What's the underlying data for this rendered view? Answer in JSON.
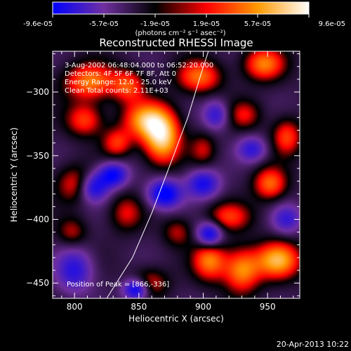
{
  "figure": {
    "footer_date": "20-Apr-2013 10:22"
  },
  "colorbar": {
    "tick_labels": [
      "-9.6e-05",
      "-5.7e-05",
      "-1.9e-05",
      "1.9e-05",
      "5.7e-05",
      "9.6e-05"
    ],
    "unit_label": "(photons cm⁻² s⁻¹ asec⁻²)",
    "range": [
      -9.6e-05,
      9.6e-05
    ],
    "colors": [
      "#0000ff",
      "#7030a0",
      "#000000",
      "#ff0000",
      "#ff9900",
      "#ffffff"
    ]
  },
  "chart_data": {
    "type": "heatmap",
    "title": "Reconstructed RHESSI Image",
    "xlabel": "Heliocentric X (arcsec)",
    "ylabel": "Heliocentric Y (arcsec)",
    "xlim": [
      783,
      975
    ],
    "ylim": [
      -462,
      -268
    ],
    "x_ticks": [
      800,
      850,
      900,
      950
    ],
    "y_ticks": [
      -450,
      -400,
      -350,
      -300
    ],
    "x_tick_labels": [
      "800",
      "850",
      "900",
      "950"
    ],
    "y_tick_labels": [
      "−450",
      "−400",
      "−350",
      "−300"
    ],
    "annotations": [
      "3-Aug-2002 06:48:04.000 to 06:52:20.000",
      "Detectors: 4F 5F 6F 7F 8F, Att 0",
      "Energy Range: 12.0 - 25.0 keV",
      "Clean    Total counts: 2.11E+03"
    ],
    "peak_label": "Position of Peak = [866,-336]",
    "peak": [
      866,
      -336
    ],
    "limb_curve": [
      [
        825,
        -462
      ],
      [
        845,
        -430
      ],
      [
        860,
        -395
      ],
      [
        875,
        -355
      ],
      [
        888,
        -320
      ],
      [
        897,
        -290
      ],
      [
        904,
        -268
      ]
    ],
    "sources": [
      {
        "x": 868,
        "y": -336,
        "sx": 10,
        "sy": 14,
        "a": 1.0
      },
      {
        "x": 855,
        "y": -322,
        "sx": 12,
        "sy": 10,
        "a": 0.75
      },
      {
        "x": 812,
        "y": -292,
        "sx": 14,
        "sy": 10,
        "a": 0.7
      },
      {
        "x": 842,
        "y": -295,
        "sx": 9,
        "sy": 9,
        "a": 0.55
      },
      {
        "x": 897,
        "y": -288,
        "sx": 12,
        "sy": 9,
        "a": 0.65
      },
      {
        "x": 808,
        "y": -322,
        "sx": 10,
        "sy": 9,
        "a": 0.55
      },
      {
        "x": 833,
        "y": -340,
        "sx": 8,
        "sy": 8,
        "a": 0.5
      },
      {
        "x": 947,
        "y": -278,
        "sx": 11,
        "sy": 9,
        "a": 0.7
      },
      {
        "x": 965,
        "y": -335,
        "sx": 8,
        "sy": 10,
        "a": 0.55
      },
      {
        "x": 932,
        "y": -318,
        "sx": 9,
        "sy": 8,
        "a": 0.4
      },
      {
        "x": 952,
        "y": -372,
        "sx": 9,
        "sy": 9,
        "a": 0.65
      },
      {
        "x": 920,
        "y": -398,
        "sx": 12,
        "sy": 8,
        "a": 0.5
      },
      {
        "x": 958,
        "y": -432,
        "sx": 12,
        "sy": 10,
        "a": 0.85
      },
      {
        "x": 930,
        "y": -440,
        "sx": 10,
        "sy": 12,
        "a": 0.75
      },
      {
        "x": 905,
        "y": -432,
        "sx": 9,
        "sy": 11,
        "a": 0.7
      },
      {
        "x": 800,
        "y": -372,
        "sx": 10,
        "sy": 10,
        "a": 0.45
      },
      {
        "x": 840,
        "y": -395,
        "sx": 9,
        "sy": 10,
        "a": 0.4
      },
      {
        "x": 880,
        "y": -410,
        "sx": 8,
        "sy": 8,
        "a": 0.35
      },
      {
        "x": 798,
        "y": -410,
        "sx": 8,
        "sy": 8,
        "a": 0.35
      },
      {
        "x": 900,
        "y": -345,
        "sx": 7,
        "sy": 9,
        "a": 0.35
      },
      {
        "x": 858,
        "y": -450,
        "sx": 10,
        "sy": 8,
        "a": 0.45
      },
      {
        "x": 830,
        "y": -365,
        "sx": 8,
        "sy": 7,
        "a": -0.8
      },
      {
        "x": 870,
        "y": -380,
        "sx": 9,
        "sy": 8,
        "a": -0.9
      },
      {
        "x": 815,
        "y": -375,
        "sx": 8,
        "sy": 8,
        "a": -0.7
      },
      {
        "x": 800,
        "y": -440,
        "sx": 10,
        "sy": 12,
        "a": -0.6
      },
      {
        "x": 900,
        "y": -372,
        "sx": 9,
        "sy": 8,
        "a": -0.7
      },
      {
        "x": 938,
        "y": -345,
        "sx": 8,
        "sy": 7,
        "a": -0.55
      },
      {
        "x": 905,
        "y": -412,
        "sx": 7,
        "sy": 7,
        "a": -0.85
      },
      {
        "x": 910,
        "y": -318,
        "sx": 7,
        "sy": 8,
        "a": -0.55
      },
      {
        "x": 848,
        "y": -455,
        "sx": 7,
        "sy": 6,
        "a": -0.9
      },
      {
        "x": 965,
        "y": -400,
        "sx": 8,
        "sy": 8,
        "a": -0.5
      }
    ]
  }
}
